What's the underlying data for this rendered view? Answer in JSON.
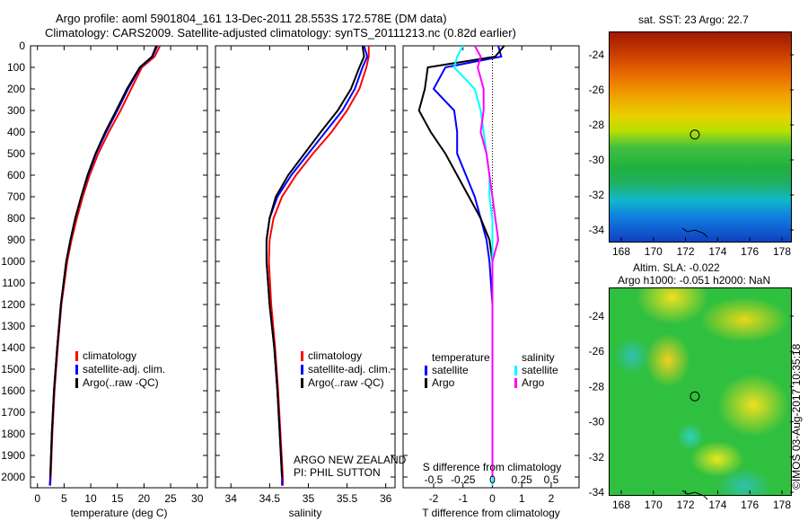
{
  "title_line1": "Argo profile: aoml 5901804_161 13-Dec-2011 28.553S 172.578E (DM data)",
  "title_line2": "Climatology: CARS2009. Satellite-adjusted climatology: synTS_20111213.nc (0.82d earlier)",
  "colors": {
    "climatology": "#ff0000",
    "satellite": "#0000ff",
    "argo": "#000000",
    "sal_satellite": "#00ffff",
    "sal_argo": "#ff00ff"
  },
  "depth_ticks": [
    "0",
    "100",
    "200",
    "300",
    "400",
    "500",
    "600",
    "700",
    "800",
    "900",
    "1000",
    "1100",
    "1200",
    "1300",
    "1400",
    "1500",
    "1600",
    "1700",
    "1800",
    "1900",
    "2000"
  ],
  "chart_data": [
    {
      "type": "line",
      "xlabel": "temperature (deg C)",
      "xlim": [
        -1.3,
        31.9
      ],
      "ylim": [
        2050,
        0
      ],
      "xticks": [
        "0",
        "5",
        "10",
        "15",
        "20",
        "25",
        "30"
      ],
      "legend": [
        "climatology",
        "satellite-adj. clim.",
        "Argo(..raw -QC)"
      ],
      "depth": [
        0,
        50,
        100,
        200,
        300,
        400,
        500,
        600,
        700,
        800,
        900,
        1000,
        1200,
        1400,
        1600,
        1800,
        2000,
        2040
      ],
      "series": [
        {
          "name": "climatology",
          "values": [
            23,
            22,
            19.6,
            17.6,
            15.6,
            13.4,
            11.4,
            9.8,
            8.5,
            7.4,
            6.4,
            5.6,
            4.5,
            3.8,
            3.2,
            2.8,
            2.5,
            2.4
          ]
        },
        {
          "name": "satellite-adj. clim.",
          "values": [
            22.5,
            21.6,
            19.3,
            17,
            15,
            12.9,
            11,
            9.5,
            8.2,
            7.1,
            6.2,
            5.4,
            4.4,
            3.7,
            3.1,
            2.7,
            2.4,
            2.3
          ]
        },
        {
          "name": "Argo(..raw -QC)",
          "values": [
            22.3,
            21.5,
            19.2,
            16.8,
            14.8,
            12.7,
            10.9,
            9.4,
            8.2,
            7.1,
            6.2,
            5.4,
            4.4,
            3.7,
            3.1,
            2.7,
            2.4,
            null
          ]
        }
      ]
    },
    {
      "type": "line",
      "xlabel": "salinity",
      "xlim": [
        33.8,
        36.12
      ],
      "ylim": [
        2050,
        0
      ],
      "xticks": [
        "34",
        "34.5",
        "35",
        "35.5",
        "36"
      ],
      "legend": [
        "climatology",
        "satellite-adj. clim.",
        "Argo(..raw -QC)"
      ],
      "annotation": [
        "ARGO NEW ZEALAND",
        "PI: PHIL SUTTON"
      ],
      "depth": [
        0,
        50,
        100,
        200,
        300,
        400,
        500,
        600,
        700,
        800,
        900,
        1000,
        1200,
        1400,
        1600,
        1800,
        2000,
        2040
      ],
      "series": [
        {
          "name": "climatology",
          "values": [
            35.78,
            35.78,
            35.75,
            35.66,
            35.5,
            35.3,
            35.06,
            34.84,
            34.66,
            34.55,
            34.5,
            34.49,
            34.52,
            34.57,
            34.61,
            34.64,
            34.67,
            34.67
          ]
        },
        {
          "name": "satellite-adj. clim.",
          "values": [
            35.72,
            35.76,
            35.7,
            35.6,
            35.44,
            35.22,
            35,
            34.78,
            34.6,
            34.5,
            34.46,
            34.46,
            34.5,
            34.56,
            34.6,
            34.63,
            34.66,
            34.66
          ]
        },
        {
          "name": "Argo(..raw -QC)",
          "values": [
            35.7,
            35.72,
            35.66,
            35.55,
            35.38,
            35.16,
            34.95,
            34.74,
            34.58,
            34.5,
            34.46,
            34.46,
            34.5,
            34.56,
            34.6,
            34.63,
            34.66,
            null
          ]
        }
      ]
    },
    {
      "type": "line",
      "xlabel": "T difference from climatology",
      "x2label": "S difference from climatology",
      "xlim": [
        -3.04,
        2.95
      ],
      "ylim": [
        2050,
        0
      ],
      "xticks": [
        "-2",
        "-1",
        "0",
        "1",
        "2"
      ],
      "x2ticks": [
        "-0.5",
        "-0.25",
        "0",
        "0.25",
        "0.5"
      ],
      "legend_temp": {
        "title": "temperature",
        "items": [
          "satellite",
          "Argo"
        ]
      },
      "legend_sal": {
        "title": "salinity",
        "items": [
          "satellite",
          "Argo"
        ]
      },
      "depth": [
        0,
        50,
        100,
        200,
        300,
        400,
        500,
        600,
        700,
        800,
        900,
        1000,
        1200,
        1400,
        1600,
        1800,
        2000,
        2040
      ],
      "series": [
        {
          "name": "temperature satellite",
          "values": [
            0.2,
            0.3,
            -1.6,
            -2.0,
            -1.3,
            -1.2,
            -1.2,
            -0.9,
            -0.6,
            -0.4,
            -0.2,
            -0.1,
            0,
            0,
            0,
            0,
            0,
            0
          ]
        },
        {
          "name": "temperature Argo",
          "values": [
            0.4,
            0.1,
            -2.2,
            -2.3,
            -2.5,
            -2.1,
            -1.6,
            -1.2,
            -0.8,
            -0.4,
            -0.1,
            0,
            0,
            0,
            0,
            0,
            0,
            null
          ]
        },
        {
          "name": "salinity satellite",
          "values": [
            -1.0,
            -1.2,
            -1.3,
            -0.6,
            -0.4,
            -0.3,
            -0.2,
            -0.1,
            -0.1,
            0,
            0,
            0,
            0,
            0,
            0,
            0,
            0,
            0
          ]
        },
        {
          "name": "salinity Argo",
          "values": [
            -0.6,
            -0.4,
            -0.5,
            -0.3,
            -0.3,
            -0.4,
            -0.2,
            -0.1,
            0,
            0.1,
            0.2,
            0,
            0,
            0,
            0,
            0,
            0,
            null
          ]
        }
      ]
    }
  ],
  "maps": {
    "sst_title": "sat. SST: 23 Argo: 22.7",
    "sla_title1": "Altim. SLA: -0.022",
    "sla_title2": "Argo h1000: -0.051 h2000: NaN",
    "lon_ticks": [
      "168",
      "170",
      "172",
      "174",
      "176",
      "178"
    ],
    "lat_ticks": [
      "-24",
      "-26",
      "-28",
      "-30",
      "-32",
      "-34"
    ],
    "profile_lon": 172.578,
    "profile_lat": -28.553
  },
  "credit": "©IMOS 03-Aug-2017 10:35:18"
}
